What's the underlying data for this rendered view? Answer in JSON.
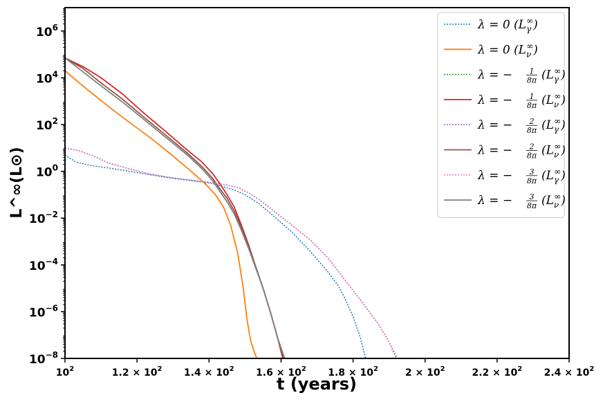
{
  "chart_data": {
    "type": "line",
    "title": "",
    "xlabel": "t (years)",
    "ylabel": "L^∞(L⊙)",
    "xscale": "linear",
    "yscale": "log",
    "xlim": [
      100,
      240
    ],
    "ylim": [
      1e-08,
      10000000.0
    ],
    "grid": false,
    "legend_position": "top-right",
    "x_ticks": [
      {
        "value": 100,
        "base": "10",
        "exp": "2",
        "mant": ""
      },
      {
        "value": 120,
        "base": "10",
        "exp": "2",
        "mant": "1.2 × "
      },
      {
        "value": 140,
        "base": "10",
        "exp": "2",
        "mant": "1.4 × "
      },
      {
        "value": 160,
        "base": "10",
        "exp": "2",
        "mant": "1.6 × "
      },
      {
        "value": 180,
        "base": "10",
        "exp": "2",
        "mant": "1.8 × "
      },
      {
        "value": 200,
        "base": "10",
        "exp": "2",
        "mant": "2 × "
      },
      {
        "value": 220,
        "base": "10",
        "exp": "2",
        "mant": "2.2 × "
      },
      {
        "value": 240,
        "base": "10",
        "exp": "2",
        "mant": "2.4 × "
      }
    ],
    "y_ticks": [
      {
        "value": 1000000.0,
        "base": "10",
        "exp": "6"
      },
      {
        "value": 10000.0,
        "base": "10",
        "exp": "4"
      },
      {
        "value": 100.0,
        "base": "10",
        "exp": "2"
      },
      {
        "value": 1.0,
        "base": "10",
        "exp": "0"
      },
      {
        "value": 0.01,
        "base": "10",
        "exp": "−2"
      },
      {
        "value": 0.0001,
        "base": "10",
        "exp": "−4"
      },
      {
        "value": 1e-06,
        "base": "10",
        "exp": "−6"
      },
      {
        "value": 1e-08,
        "base": "10",
        "exp": "−8"
      }
    ],
    "series": [
      {
        "name": "λ = 0 (L_γ^∞)",
        "lambda_label": "λ = 0",
        "frac": null,
        "lum_sub": "γ",
        "color": "#1f77b4",
        "dash": "dotted",
        "x": [
          100,
          103,
          107,
          112,
          118,
          124,
          130,
          136,
          141,
          144,
          147,
          150,
          154,
          158,
          163,
          168,
          173,
          176,
          178,
          180,
          182,
          183.5
        ],
        "y": [
          5,
          2.5,
          1.8,
          1.4,
          1.0,
          0.7,
          0.5,
          0.38,
          0.3,
          0.22,
          0.16,
          0.1,
          0.04,
          0.012,
          0.0025,
          0.0004,
          5e-05,
          1.2e-05,
          3e-06,
          6e-07,
          8e-08,
          1e-08
        ]
      },
      {
        "name": "λ = 0 (L_ν^∞)",
        "lambda_label": "λ = 0",
        "frac": null,
        "lum_sub": "ν",
        "color": "#ff7f0e",
        "dash": "solid",
        "x": [
          100,
          103,
          107,
          112,
          118,
          124,
          130,
          135,
          138,
          140,
          142,
          144,
          146,
          148,
          149.5,
          150.5,
          151.5,
          152.5,
          153.3
        ],
        "y": [
          20000,
          8000,
          2500,
          600,
          120,
          25,
          4.5,
          1.0,
          0.4,
          0.2,
          0.09,
          0.03,
          0.005,
          0.0003,
          1e-05,
          5e-07,
          6e-08,
          2e-08,
          1e-08
        ]
      },
      {
        "name": "λ = −1/8π (L_γ^∞)",
        "lambda_label": "λ = −",
        "frac": "1/8π",
        "lum_sub": "γ",
        "color": "#2ca02c",
        "dash": "dotted",
        "x": [
          100,
          104,
          108,
          112,
          117,
          123,
          129,
          135,
          140,
          145,
          148,
          151,
          154,
          158,
          163,
          168,
          173,
          178,
          183,
          187,
          190,
          192
        ],
        "y": [
          10,
          7.5,
          4.5,
          2.3,
          1.4,
          0.8,
          0.55,
          0.42,
          0.34,
          0.26,
          0.2,
          0.12,
          0.06,
          0.02,
          0.005,
          0.0012,
          0.0002,
          2e-05,
          2e-06,
          3e-07,
          5e-08,
          1e-08
        ]
      },
      {
        "name": "λ = −1/8π (L_ν^∞)",
        "lambda_label": "λ = −",
        "frac": "1/8π",
        "lum_sub": "ν",
        "color": "#d62728",
        "dash": "solid",
        "x": [
          100,
          105,
          110,
          116,
          122,
          128,
          134,
          138,
          141,
          143,
          145,
          147,
          149,
          151,
          153,
          155,
          157,
          159,
          160.5
        ],
        "y": [
          70000,
          30000,
          10000,
          2000,
          300,
          50,
          8,
          2.5,
          0.8,
          0.3,
          0.1,
          0.03,
          0.005,
          0.0007,
          8e-05,
          1e-05,
          1e-06,
          8e-08,
          1e-08
        ]
      },
      {
        "name": "λ = −2/8π (L_γ^∞)",
        "lambda_label": "λ = −",
        "frac": "2/8π",
        "lum_sub": "γ",
        "color": "#9467bd",
        "dash": "dotted",
        "x": [
          100,
          104,
          108,
          112,
          117,
          123,
          129,
          135,
          140,
          145,
          148,
          151,
          154,
          158,
          163,
          168,
          173,
          178,
          183,
          187,
          190,
          192.2
        ],
        "y": [
          10,
          7.5,
          4.5,
          2.3,
          1.4,
          0.8,
          0.55,
          0.42,
          0.34,
          0.26,
          0.2,
          0.12,
          0.06,
          0.02,
          0.005,
          0.0012,
          0.0002,
          2e-05,
          2e-06,
          3e-07,
          5e-08,
          1e-08
        ]
      },
      {
        "name": "λ = −2/8π (L_ν^∞)",
        "lambda_label": "λ = −",
        "frac": "2/8π",
        "lum_sub": "ν",
        "color": "#8c564b",
        "dash": "solid",
        "x": [
          100,
          105,
          110,
          116,
          122,
          128,
          134,
          138,
          141,
          143,
          145,
          147,
          149,
          151,
          153,
          155,
          157,
          159,
          160.8
        ],
        "y": [
          70000,
          25000,
          6000,
          1200,
          200,
          35,
          6,
          1.6,
          0.5,
          0.18,
          0.07,
          0.02,
          0.004,
          0.0006,
          8e-05,
          1e-05,
          1e-06,
          8e-08,
          1e-08
        ]
      },
      {
        "name": "λ = −3/8π (L_γ^∞)",
        "lambda_label": "λ = −",
        "frac": "3/8π",
        "lum_sub": "γ",
        "color": "#e377c2",
        "dash": "dotted",
        "x": [
          100,
          104,
          108,
          112,
          117,
          123,
          129,
          135,
          140,
          145,
          148,
          151,
          154,
          158,
          163,
          168,
          173,
          178,
          183,
          187,
          190,
          192.4
        ],
        "y": [
          10,
          7.5,
          4.5,
          2.3,
          1.4,
          0.8,
          0.55,
          0.42,
          0.34,
          0.26,
          0.2,
          0.12,
          0.06,
          0.02,
          0.005,
          0.0012,
          0.0002,
          2e-05,
          2e-06,
          3e-07,
          5e-08,
          1e-08
        ]
      },
      {
        "name": "λ = −3/8π (L_ν^∞)",
        "lambda_label": "λ = −",
        "frac": "3/8π",
        "lum_sub": "ν",
        "color": "#7f7f7f",
        "dash": "solid",
        "x": [
          100,
          105,
          110,
          116,
          122,
          128,
          134,
          138,
          141,
          143,
          145,
          147,
          149,
          151,
          153,
          155,
          157,
          159,
          161
        ],
        "y": [
          70000,
          18000,
          4500,
          900,
          160,
          28,
          5,
          1.3,
          0.4,
          0.14,
          0.05,
          0.015,
          0.003,
          0.0005,
          7e-05,
          1e-05,
          1e-06,
          8e-08,
          1e-08
        ]
      }
    ]
  }
}
